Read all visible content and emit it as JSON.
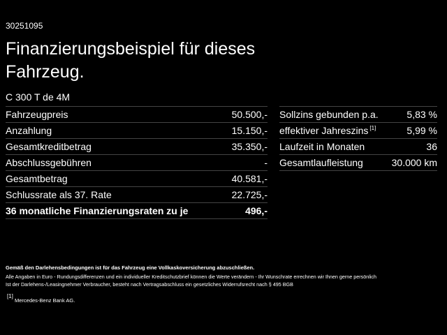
{
  "id": "30251095",
  "title": "Finanzierungsbeispiel für dieses Fahrzeug.",
  "model": "C 300 T de 4M",
  "left_table": {
    "rows": [
      {
        "label": "Fahrzeugpreis",
        "value": "50.500,-"
      },
      {
        "label": "Anzahlung",
        "value": "15.150,-"
      },
      {
        "label": "Gesamtkreditbetrag",
        "value": "35.350,-"
      },
      {
        "label": "Abschlussgebühren",
        "value": "-"
      },
      {
        "label": "Gesamtbetrag",
        "value": "40.581,-"
      },
      {
        "label": "Schlussrate als 37. Rate",
        "value": "22.725,-"
      },
      {
        "label": "36 monatliche Finanzierungsraten zu je",
        "value": "496,-"
      }
    ]
  },
  "right_table": {
    "rows": [
      {
        "label": "Sollzins gebunden p.a.",
        "value": "5,83 %"
      },
      {
        "label": "effektiver Jahreszins",
        "note": "[1]",
        "value": "5,99 %"
      },
      {
        "label": "Laufzeit in Monaten",
        "value": "36"
      },
      {
        "label": "Gesamtlaufleistung",
        "value": "30.000 km"
      }
    ]
  },
  "footer": {
    "notice": "Gemäß den Darlehensbedingungen ist für das Fahrzeug eine Vollkaskoversicherung abzuschließen.",
    "lines": [
      "Alle Angaben in Euro - Rundungsdifferenzen und ein individueller Kreditschutzbrief können die Werte verändern - Ihr Wunschrate errechnen wir Ihnen gerne persönlich",
      "Ist der Darlehens-/Leasingnehmer Verbraucher, besteht nach Vertragsabschluss ein gesetzliches Widerrufsrecht nach § 495 BGB"
    ],
    "footnote": {
      "marker": "[1]",
      "text": "Mercedes-Benz Bank AG."
    }
  }
}
